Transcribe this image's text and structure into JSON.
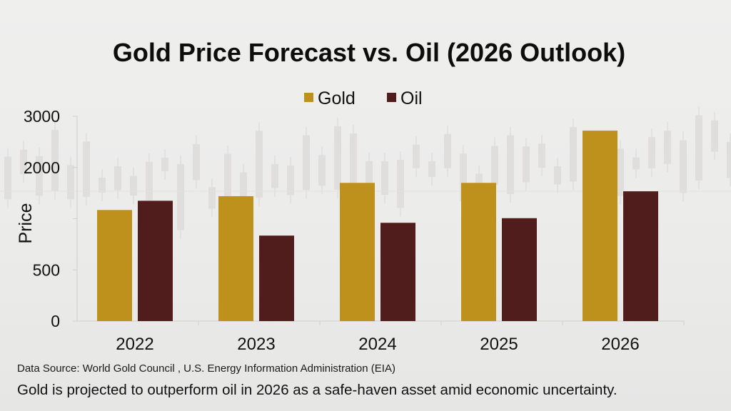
{
  "chart_data": {
    "type": "bar",
    "title": "Gold Price Forecast vs. Oil (2026 Outlook)",
    "xlabel": "",
    "ylabel": "Price",
    "categories": [
      "2022",
      "2023",
      "2024",
      "2025",
      "2026"
    ],
    "series": [
      {
        "name": "Gold",
        "color": "#be901c",
        "values": [
          1170,
          1440,
          1700,
          1700,
          2720
        ]
      },
      {
        "name": "Oil",
        "color": "#511c1c",
        "values": [
          1350,
          835,
          960,
          1010,
          1535
        ]
      }
    ],
    "yticks": [
      0,
      500,
      1000,
      2000,
      3000
    ],
    "ytick_labels": [
      "0",
      "500",
      "",
      "2000",
      "3000"
    ],
    "ylim": [
      0,
      3000
    ],
    "grid": false,
    "legend": "top-center"
  },
  "footer": {
    "source": "Data Source: World Gold Council , U.S. Energy Information Administration (EIA)",
    "caption": "Gold is projected to outperform oil in 2026 as a safe-haven asset amid economic uncertainty."
  }
}
